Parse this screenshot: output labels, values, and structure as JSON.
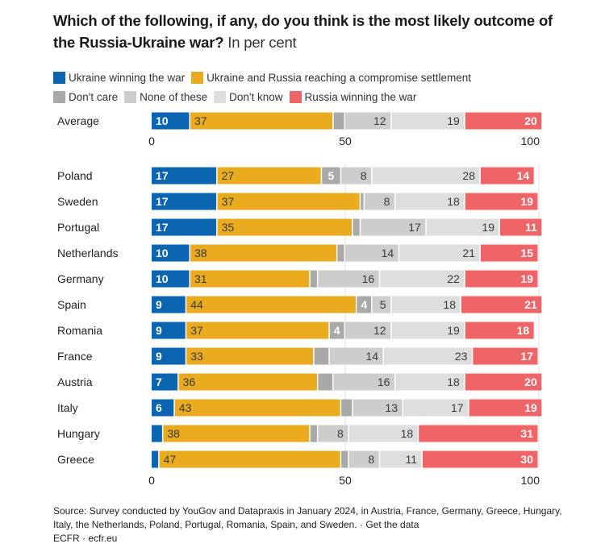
{
  "title": {
    "main": "Which of the following, if any, do you think is the most likely outcome of the Russia-Ukraine war?",
    "unit": "In per cent"
  },
  "colors": {
    "ukraine_win": "#0a64b0",
    "compromise": "#eaab1f",
    "dont_care": "#a9a9a9",
    "none": "#cdcdcd",
    "dont_know": "#dedede",
    "russia_win": "#ef6466",
    "gridline": "#e3e3e3"
  },
  "chart_data": {
    "type": "bar",
    "orientation": "horizontal",
    "stacked": true,
    "title": "Which of the following, if any, do you think is the most likely outcome of the Russia-Ukraine war? In per cent",
    "xlabel": "",
    "ylabel": "",
    "xlim": [
      0,
      100
    ],
    "xticks": [
      0,
      50,
      100
    ],
    "grid": true,
    "legend": "top",
    "summary_category": "Average",
    "categories": [
      "Average",
      "Poland",
      "Sweden",
      "Portugal",
      "Netherlands",
      "Germany",
      "Spain",
      "Romania",
      "France",
      "Austria",
      "Italy",
      "Hungary",
      "Greece"
    ],
    "series": [
      {
        "name": "Ukraine winning the war",
        "key": "ukraine_win",
        "values": [
          10,
          17,
          17,
          17,
          10,
          10,
          9,
          9,
          9,
          7,
          6,
          3,
          2
        ],
        "shown_labels": [
          "10",
          "17",
          "17",
          "17",
          "10",
          "10",
          "9",
          "9",
          "9",
          "7",
          "6",
          "",
          ""
        ]
      },
      {
        "name": "Ukraine and Russia reaching a compromise settlement",
        "key": "compromise",
        "values": [
          37,
          27,
          37,
          35,
          38,
          31,
          44,
          37,
          33,
          36,
          43,
          38,
          47
        ],
        "shown_labels": [
          "37",
          "27",
          "37",
          "35",
          "38",
          "31",
          "44",
          "37",
          "33",
          "36",
          "43",
          "38",
          "47"
        ]
      },
      {
        "name": "Don't care",
        "key": "dont_care",
        "values": [
          3,
          5,
          1,
          2,
          2,
          2,
          4,
          4,
          4,
          4,
          3,
          2,
          2
        ],
        "shown_labels": [
          "",
          "5",
          "",
          "",
          "",
          "",
          "4",
          "4",
          "",
          "",
          "",
          "",
          ""
        ]
      },
      {
        "name": "None of these",
        "key": "none",
        "values": [
          12,
          8,
          8,
          17,
          14,
          16,
          5,
          12,
          14,
          16,
          13,
          8,
          8
        ],
        "shown_labels": [
          "12",
          "8",
          "8",
          "17",
          "14",
          "16",
          "5",
          "12",
          "14",
          "16",
          "13",
          "8",
          "8"
        ]
      },
      {
        "name": "Don't know",
        "key": "dont_know",
        "values": [
          19,
          28,
          18,
          19,
          21,
          22,
          18,
          19,
          23,
          18,
          17,
          18,
          11
        ],
        "shown_labels": [
          "19",
          "28",
          "18",
          "19",
          "21",
          "22",
          "18",
          "19",
          "23",
          "18",
          "17",
          "18",
          "11"
        ]
      },
      {
        "name": "Russia winning the war",
        "key": "russia_win",
        "values": [
          20,
          14,
          19,
          11,
          15,
          19,
          21,
          18,
          17,
          20,
          19,
          31,
          30
        ],
        "shown_labels": [
          "20",
          "14",
          "19",
          "11",
          "15",
          "19",
          "21",
          "18",
          "17",
          "20",
          "19",
          "31",
          "30"
        ]
      }
    ]
  },
  "legend": {
    "row1": [
      {
        "label": "Ukraine winning the war",
        "key": "ukraine_win"
      },
      {
        "label": "Ukraine and Russia reaching a compromise settlement",
        "key": "compromise"
      }
    ],
    "row2": [
      {
        "label": "Don't care",
        "key": "dont_care"
      },
      {
        "label": "None of these",
        "key": "none"
      },
      {
        "label": "Don't know",
        "key": "dont_know"
      },
      {
        "label": "Russia winning the war",
        "key": "russia_win"
      }
    ]
  },
  "footer": {
    "source": "Source: Survey conducted by YouGov and Datapraxis in January 2024, in Austria, France, Germany, Greece, Hungary, Italy, the Netherlands, Poland, Portugal, Romania, Spain, and Sweden.",
    "separator": " · ",
    "get_data_link": "Get the data",
    "credit": "ECFR · ecfr.eu"
  }
}
